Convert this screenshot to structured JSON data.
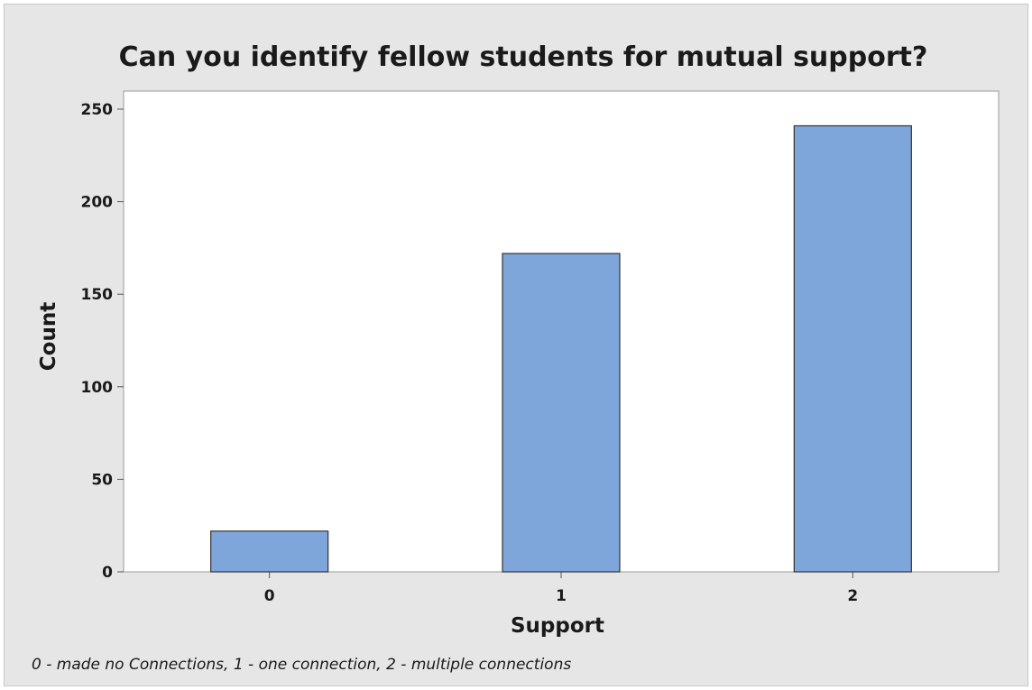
{
  "chart_data": {
    "type": "bar",
    "title": "Can you identify fellow students for mutual support?",
    "xlabel": "Support",
    "ylabel": "Count",
    "categories": [
      "0",
      "1",
      "2"
    ],
    "values": [
      22,
      172,
      241
    ],
    "ylim": [
      0,
      250
    ],
    "yticks": [
      0,
      50,
      100,
      150,
      200,
      250
    ],
    "grid": false,
    "legend": "none",
    "bar_color": "#7ea6da",
    "bar_edge_color": "#333333",
    "plot_background": "#ffffff",
    "figure_background": "#e6e6e6"
  },
  "footnote": "0 - made no Connections, 1 - one connection, 2 - multiple connections"
}
